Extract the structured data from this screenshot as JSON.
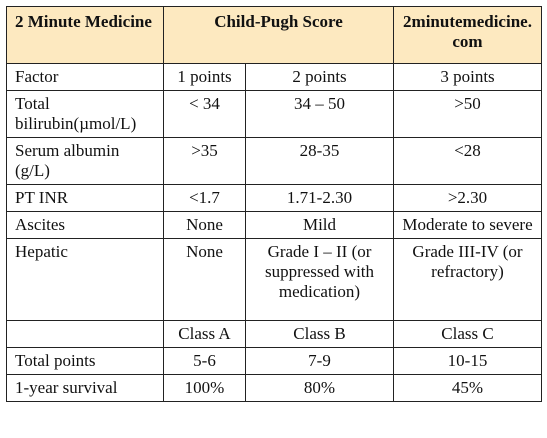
{
  "header": {
    "col1": "2 Minute Medicine",
    "col2": "Child-Pugh Score",
    "col3": "2minutemedicine. com"
  },
  "rows": [
    [
      "Factor",
      "1 points",
      "2 points",
      "3 points"
    ],
    [
      "Total bilirubin(µmol/L)",
      "< 34",
      "34 – 50",
      ">50"
    ],
    [
      "Serum albumin (g/L)",
      ">35",
      "28-35",
      "<28"
    ],
    [
      "PT INR",
      "<1.7",
      "1.71-2.30",
      ">2.30"
    ],
    [
      "Ascites",
      "None",
      "Mild",
      "Moderate to severe"
    ],
    [
      "Hepatic",
      "None",
      "Grade I – II (or suppressed with medication)",
      "Grade III-IV (or refractory)"
    ],
    [
      "",
      "Class A",
      "Class B",
      "Class C"
    ],
    [
      "Total points",
      "5-6",
      "7-9",
      "10-15"
    ],
    [
      "1-year survival",
      "100%",
      "80%",
      "45%"
    ]
  ],
  "colors": {
    "header_bg": "#fde9c0",
    "border": "#222222"
  }
}
